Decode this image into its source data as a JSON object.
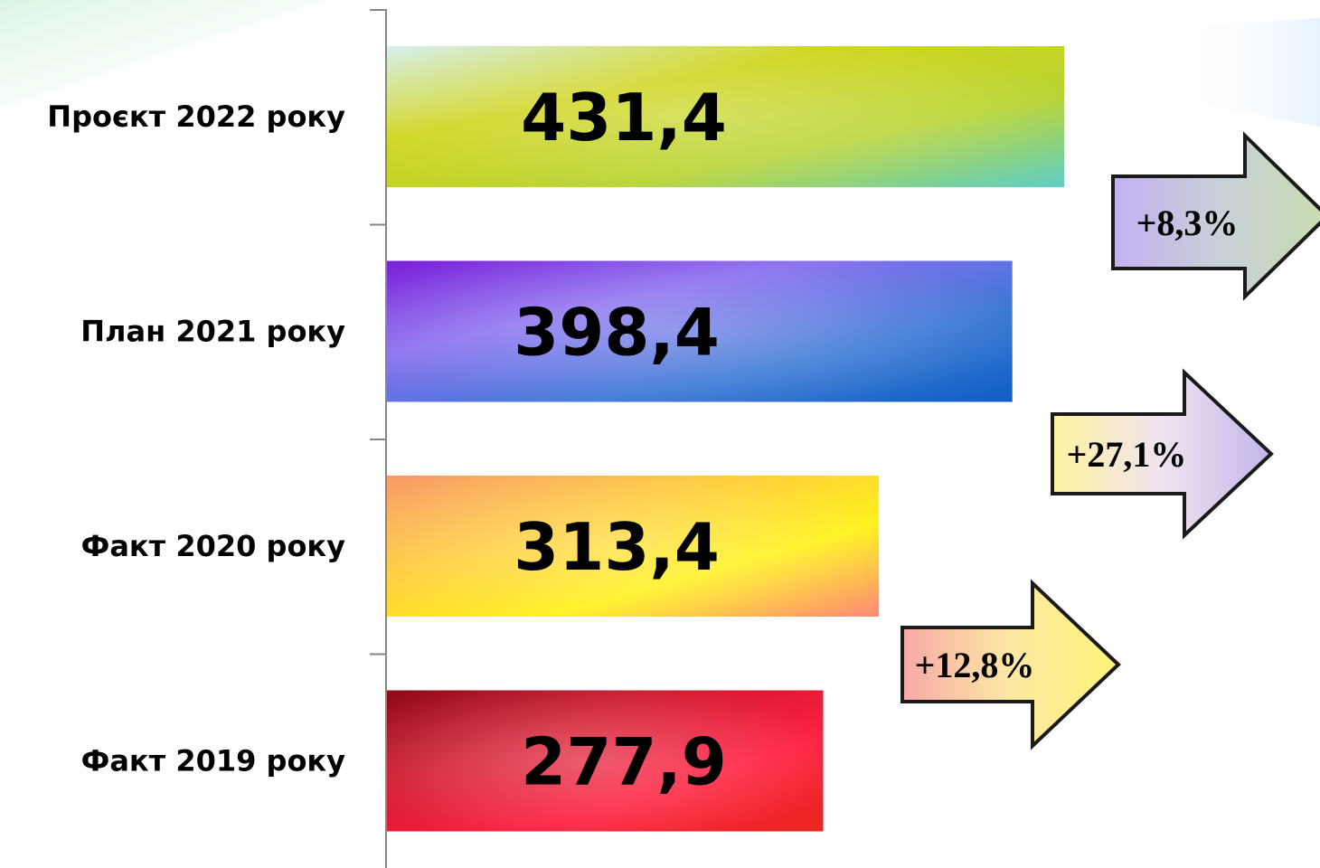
{
  "chart_data": {
    "type": "bar",
    "orientation": "horizontal",
    "categories": [
      "Проєкт 2022 року",
      "План 2021 року",
      "Факт 2020 року",
      "Факт 2019 року"
    ],
    "values": [
      431.4,
      398.4,
      313.4,
      277.9
    ],
    "value_labels": [
      "431,4",
      "398,4",
      "313,4",
      "277,9"
    ],
    "title": "",
    "xlabel": "",
    "ylabel": "",
    "xlim": [
      0,
      570
    ],
    "grid": false,
    "legend": "none",
    "growth_arrows": [
      {
        "from": "Факт 2019 року",
        "to": "Факт 2020 року",
        "label": "+12,8%",
        "gradient": [
          "#f7a8a8",
          "#fde9a3",
          "#fff47a"
        ]
      },
      {
        "from": "Факт 2020 року",
        "to": "План 2021 року",
        "label": "+27,1%",
        "gradient": [
          "#fff3a0",
          "#efe3f0",
          "#c4b6e8"
        ]
      },
      {
        "from": "План 2021 року",
        "to": "Проєкт 2022 року",
        "label": "+8,3%",
        "gradient": [
          "#c4b0f0",
          "#c8d0d8",
          "#c8dcb0"
        ]
      }
    ],
    "bar_gradients": [
      [
        "#d8f0f0",
        "#cfd51a",
        "#b9d432",
        "#5ecfc8"
      ],
      [
        "#7a1fd9",
        "#8a6ff0",
        "#3a78d6",
        "#0e5fc4"
      ],
      [
        "#f99a6a",
        "#ffc93c",
        "#fff21c",
        "#ff8a7a"
      ],
      [
        "#8f0a1a",
        "#d2182e",
        "#ff2040",
        "#e8261e"
      ]
    ]
  }
}
